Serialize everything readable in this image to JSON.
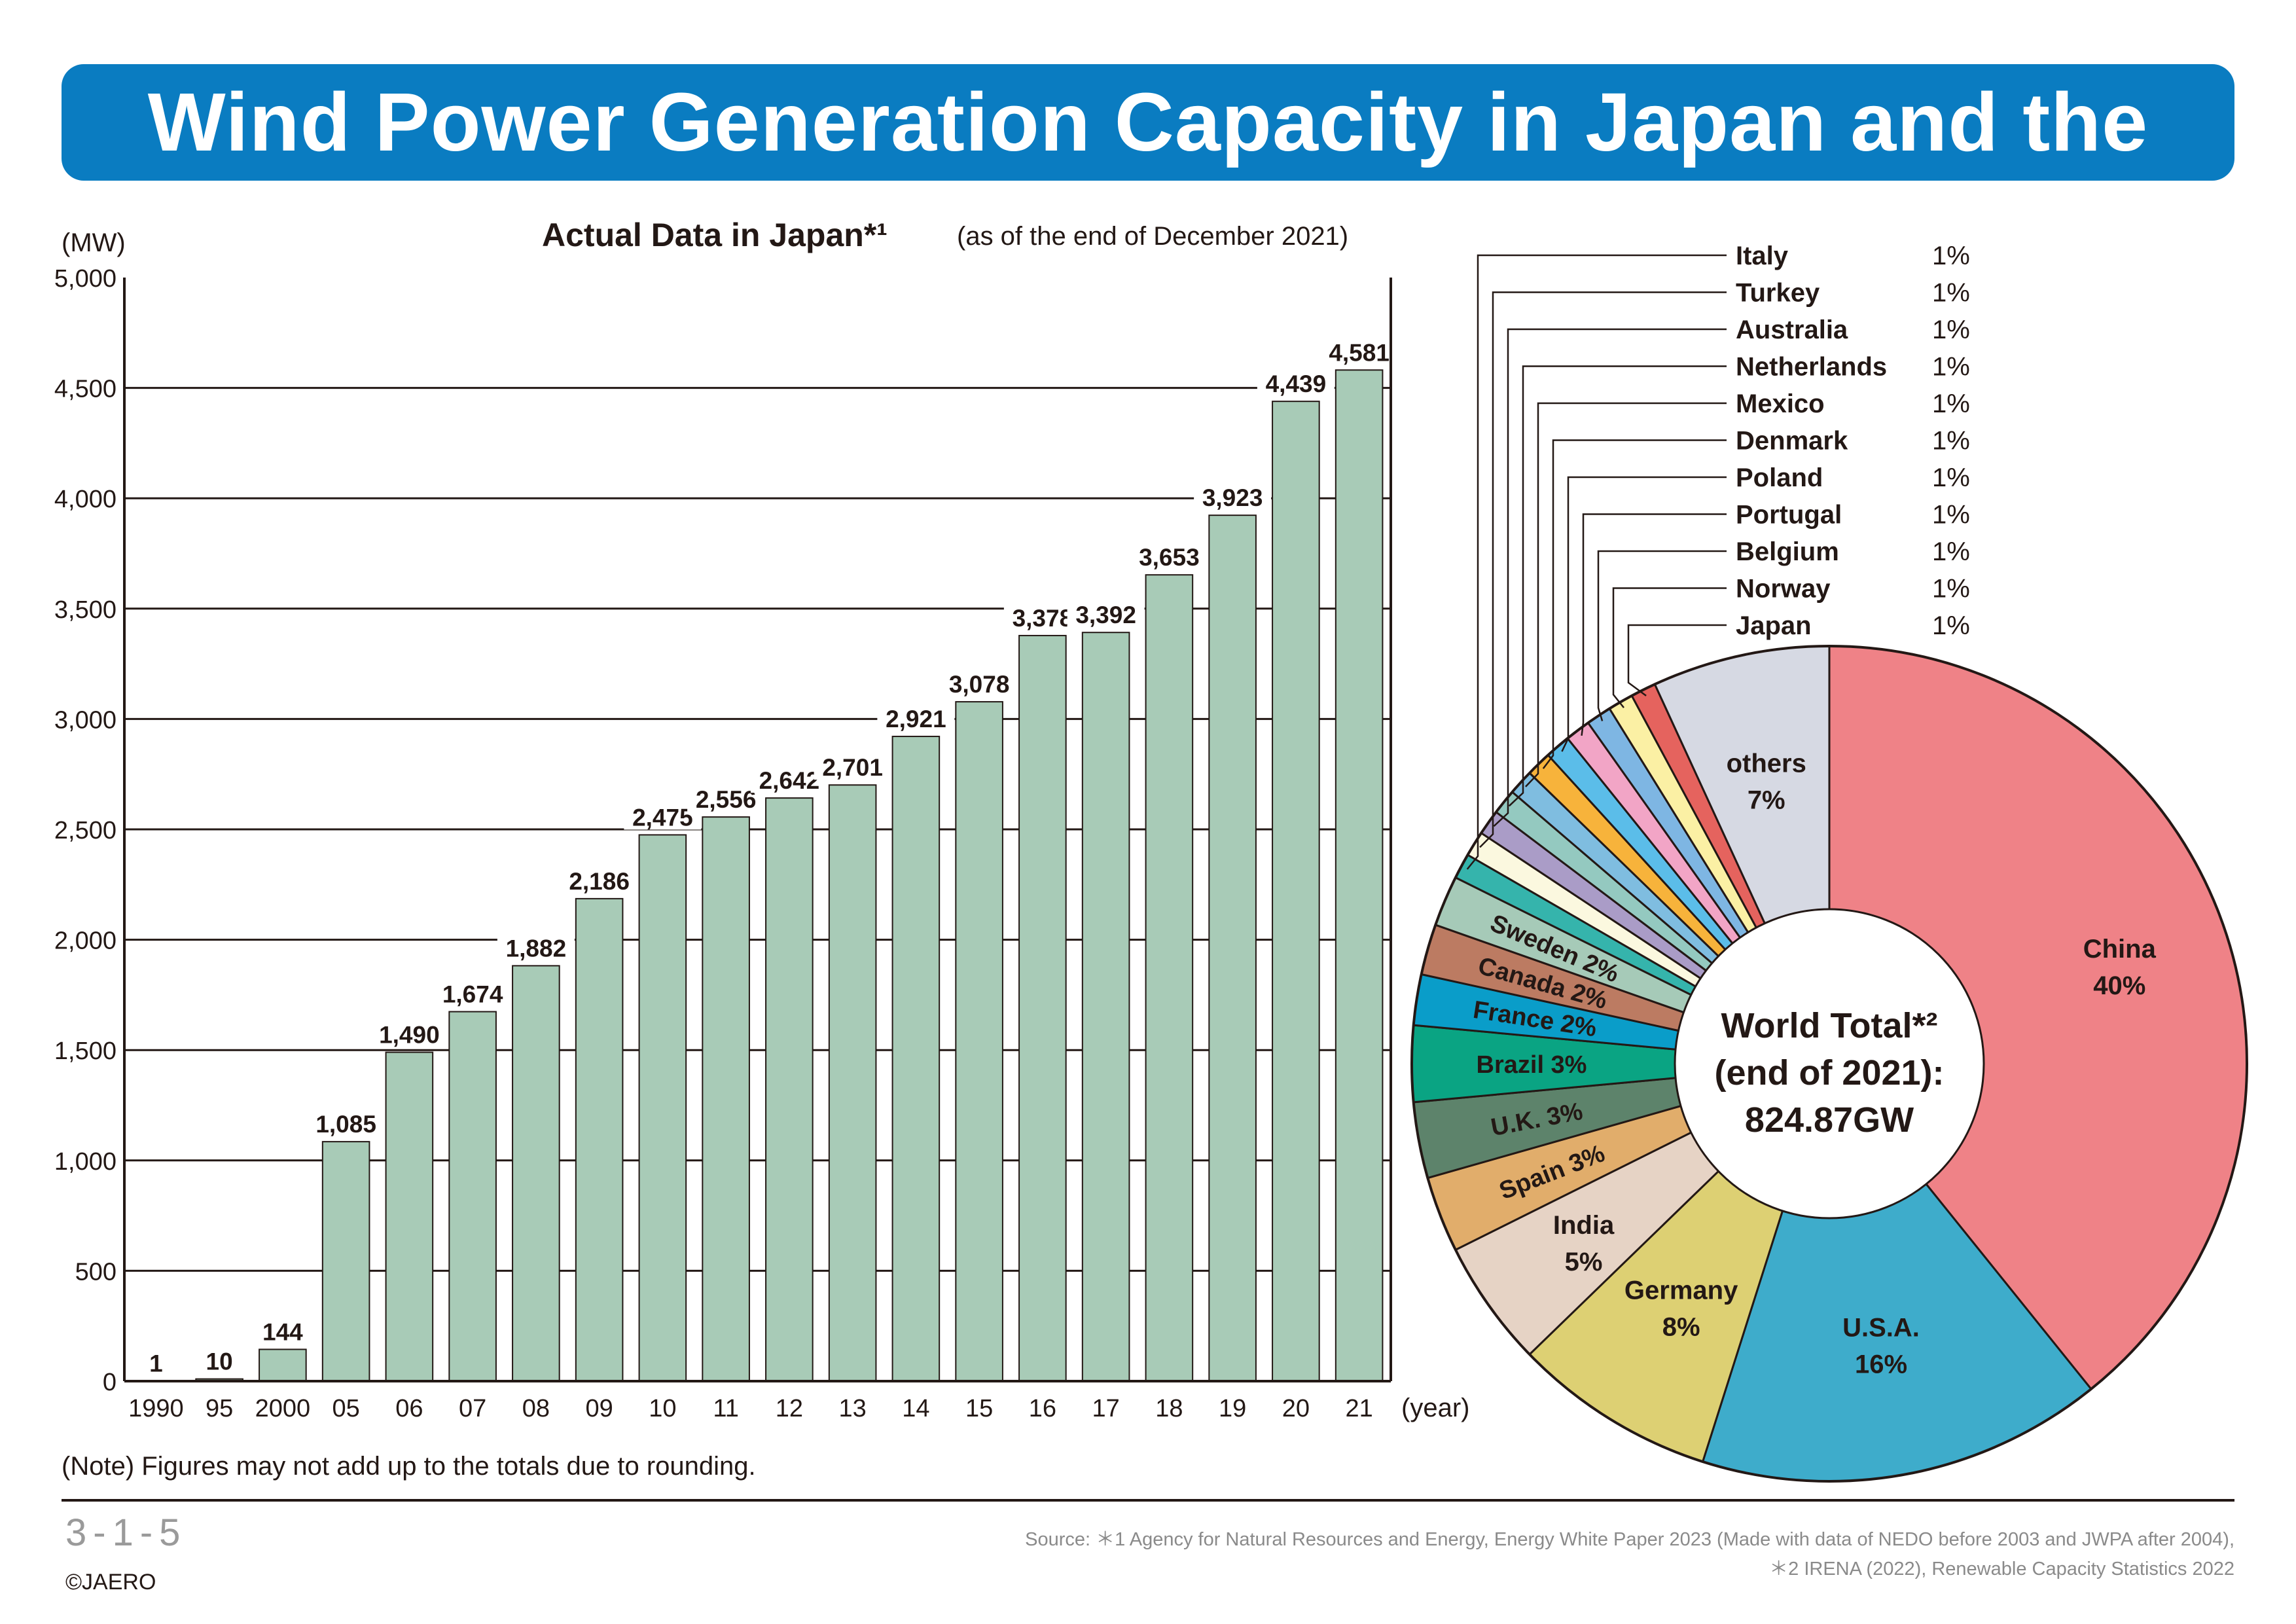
{
  "title": "Wind Power Generation Capacity in Japan and the World",
  "note": "(Note) Figures may not add up to the totals due to rounding.",
  "figure_number": "3-1-5",
  "copyright": "©JAERO",
  "source_line1": "Source: ＊1  Agency for Natural Resources and Energy, Energy White Paper 2023 (Made with data of NEDO before 2003 and JWPA after 2004),",
  "source_line2": "＊2  IRENA (2022), Renewable Capacity Statistics 2022",
  "colors": {
    "banner": "#0a7cc1",
    "bar": "#a8cbb7"
  },
  "chart_data": [
    {
      "type": "bar",
      "title": "Actual Data in Japan*¹",
      "subtitle": "(as of the end of December 2021)",
      "ylabel": "(MW)",
      "xlabel": "(year)",
      "ylim": [
        0,
        5000
      ],
      "yticks": [
        0,
        500,
        1000,
        1500,
        2000,
        2500,
        3000,
        3500,
        4000,
        4500,
        5000
      ],
      "ytick_labels": [
        "0",
        "500",
        "1,000",
        "1,500",
        "2,000",
        "2,500",
        "3,000",
        "3,500",
        "4,000",
        "4,500",
        "5,000"
      ],
      "grid": true,
      "categories": [
        "1990",
        "95",
        "2000",
        "05",
        "06",
        "07",
        "08",
        "09",
        "10",
        "11",
        "12",
        "13",
        "14",
        "15",
        "16",
        "17",
        "18",
        "19",
        "20",
        "21"
      ],
      "values": [
        1,
        10,
        144,
        1085,
        1490,
        1674,
        1882,
        2186,
        2475,
        2556,
        2642,
        2701,
        2921,
        3078,
        3378,
        3392,
        3653,
        3923,
        4439,
        4581
      ],
      "value_labels": [
        "1",
        "10",
        "144",
        "1,085",
        "1,490",
        "1,674",
        "1,882",
        "2,186",
        "2,475",
        "2,556",
        "2,642",
        "2,701",
        "2,921",
        "3,078",
        "3,378",
        "3,392",
        "3,653",
        "3,923",
        "4,439",
        "4,581"
      ]
    },
    {
      "type": "pie",
      "center_label": [
        "World Total*²",
        "(end of 2021):",
        "824.87GW"
      ],
      "slices": [
        {
          "label": "China",
          "value": 40,
          "pct": "40%",
          "color": "#ef8287"
        },
        {
          "label": "U.S.A.",
          "value": 16,
          "pct": "16%",
          "color": "#3eaccb"
        },
        {
          "label": "Germany",
          "value": 8,
          "pct": "8%",
          "color": "#ddd073"
        },
        {
          "label": "India",
          "value": 5,
          "pct": "5%",
          "color": "#e6d3c5"
        },
        {
          "label": "Spain",
          "value": 3,
          "pct": "3%",
          "color": "#e1ad6b"
        },
        {
          "label": "U.K.",
          "value": 3,
          "pct": "3%",
          "color": "#5d836b"
        },
        {
          "label": "Brazil",
          "value": 3,
          "pct": "3%",
          "color": "#0aa483"
        },
        {
          "label": "France",
          "value": 2,
          "pct": "2%",
          "color": "#0a9dc9"
        },
        {
          "label": "Canada",
          "value": 2,
          "pct": "2%",
          "color": "#bc7b62"
        },
        {
          "label": "Sweden",
          "value": 2,
          "pct": "2%",
          "color": "#a6cab8"
        },
        {
          "label": "Italy",
          "value": 1,
          "pct": "1%",
          "color": "#35b4ac"
        },
        {
          "label": "Turkey",
          "value": 1,
          "pct": "1%",
          "color": "#fbf8df"
        },
        {
          "label": "Australia",
          "value": 1,
          "pct": "1%",
          "color": "#aa9cc7"
        },
        {
          "label": "Netherlands",
          "value": 1,
          "pct": "1%",
          "color": "#94c9c0"
        },
        {
          "label": "Mexico",
          "value": 1,
          "pct": "1%",
          "color": "#7fbde0"
        },
        {
          "label": "Denmark",
          "value": 1,
          "pct": "1%",
          "color": "#f7b33b"
        },
        {
          "label": "Poland",
          "value": 1,
          "pct": "1%",
          "color": "#5bbde9"
        },
        {
          "label": "Portugal",
          "value": 1,
          "pct": "1%",
          "color": "#f2a5c6"
        },
        {
          "label": "Belgium",
          "value": 1,
          "pct": "1%",
          "color": "#7eb6e3"
        },
        {
          "label": "Norway",
          "value": 1,
          "pct": "1%",
          "color": "#fbf0a4"
        },
        {
          "label": "Japan",
          "value": 1,
          "pct": "1%",
          "color": "#e5635e"
        },
        {
          "label": "others",
          "value": 7,
          "pct": "7%",
          "color": "#d6d9e3"
        }
      ]
    }
  ]
}
